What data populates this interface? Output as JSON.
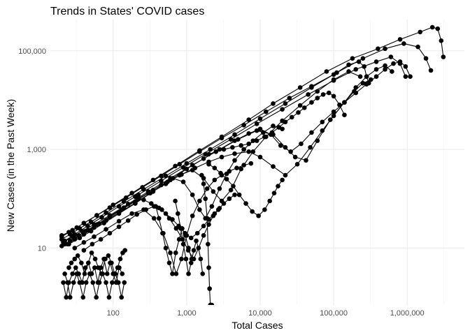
{
  "chart_data": {
    "type": "scatter",
    "title": "Trends in States' COVID cases",
    "xlabel": "Total Cases",
    "ylabel": "New Cases (in the Past Week)",
    "x_scale": "log10",
    "y_scale": "log10",
    "xlim": [
      14,
      6000000
    ],
    "ylim": [
      0.7,
      430000
    ],
    "x_ticks": [
      {
        "value": 100,
        "label": "100"
      },
      {
        "value": 1000,
        "label": "1,000"
      },
      {
        "value": 10000,
        "label": "10,000"
      },
      {
        "value": 100000,
        "label": "100,000"
      },
      {
        "value": 1000000,
        "label": "1,000,000"
      }
    ],
    "y_ticks": [
      {
        "value": 10,
        "label": "10"
      },
      {
        "value": 1000,
        "label": "1,000"
      },
      {
        "value": 100000,
        "label": "100,000"
      }
    ],
    "grid": true,
    "legend": "none",
    "marker_color": "#000000",
    "series": [
      {
        "x": [
          20,
          25,
          32,
          40,
          60,
          90,
          150,
          250,
          450,
          800,
          1500,
          3000,
          6000,
          12000,
          25000,
          50000,
          100000,
          160000,
          220000,
          260000,
          280000,
          300000
        ],
        "y": [
          18,
          21,
          26,
          32,
          46,
          66,
          105,
          170,
          290,
          500,
          900,
          1700,
          3100,
          5800,
          11000,
          19000,
          33000,
          52000,
          60000,
          48000,
          30000,
          22000
        ]
      },
      {
        "x": [
          20,
          28,
          40,
          60,
          100,
          180,
          350,
          700,
          1500,
          3000,
          7000,
          15000,
          35000,
          80000,
          180000,
          400000,
          800000,
          1500000,
          2200000,
          2600000,
          2900000,
          3100000
        ],
        "y": [
          17,
          23,
          32,
          46,
          75,
          130,
          240,
          460,
          950,
          1800,
          4000,
          8500,
          18000,
          38000,
          70000,
          110000,
          170000,
          240000,
          300000,
          280000,
          160000,
          75000
        ]
      },
      {
        "x": [
          22,
          30,
          45,
          70,
          120,
          220,
          450,
          900,
          1800,
          4000,
          9000,
          20000,
          45000,
          100000,
          200000,
          380000,
          600000,
          800000,
          950000
        ],
        "y": [
          14,
          19,
          28,
          42,
          70,
          120,
          230,
          430,
          800,
          1600,
          3300,
          6500,
          13000,
          25000,
          42000,
          60000,
          75000,
          55000,
          30000
        ]
      },
      {
        "x": [
          20,
          26,
          35,
          50,
          80,
          140,
          260,
          520,
          1000,
          2100,
          4500,
          10000,
          22000,
          50000,
          110000,
          250000,
          500000,
          900000,
          1400000,
          1800000,
          2100000
        ],
        "y": [
          15,
          19,
          25,
          34,
          52,
          88,
          155,
          290,
          520,
          1000,
          2000,
          4200,
          8500,
          18000,
          36000,
          70000,
          110000,
          140000,
          120000,
          70000,
          40000
        ]
      },
      {
        "x": [
          21,
          28,
          38,
          55,
          90,
          160,
          300,
          600,
          1200,
          2500,
          5000,
          9000,
          15000,
          22000,
          30000,
          42000,
          60000,
          90000,
          140000,
          200000,
          280000,
          380000,
          500000,
          620000
        ],
        "y": [
          13,
          17,
          22,
          30,
          46,
          78,
          140,
          260,
          480,
          900,
          1600,
          2400,
          2000,
          1100,
          700,
          600,
          1500,
          4000,
          9000,
          18000,
          30000,
          42000,
          50000,
          38000
        ]
      },
      {
        "x": [
          24,
          30,
          40,
          55,
          80,
          120,
          200,
          320,
          520,
          800,
          1200,
          1700,
          2300,
          3000,
          4000,
          5500,
          8000,
          12000,
          20000,
          35000,
          60000,
          100000,
          160000,
          230000
        ],
        "y": [
          12,
          15,
          19,
          26,
          36,
          52,
          82,
          130,
          200,
          300,
          380,
          260,
          140,
          90,
          150,
          400,
          900,
          1800,
          3800,
          7800,
          15000,
          26000,
          38000,
          30000
        ]
      },
      {
        "x": [
          20,
          26,
          34,
          46,
          64,
          90,
          130,
          200,
          300,
          450,
          650,
          900,
          1200,
          1500,
          1800,
          2200,
          2800,
          3500,
          4500,
          6000,
          8000,
          11000,
          15000,
          20000
        ],
        "y": [
          11,
          14,
          18,
          23,
          31,
          42,
          60,
          88,
          130,
          190,
          260,
          220,
          120,
          60,
          40,
          70,
          160,
          320,
          600,
          1000,
          1500,
          2200,
          3000,
          2600
        ]
      },
      {
        "x": [
          22,
          30,
          42,
          60,
          90,
          140,
          220,
          350,
          550,
          850,
          1300,
          2000,
          3000,
          4500,
          7000,
          10000,
          15000,
          22000,
          32000,
          48000,
          70000,
          100000,
          140000,
          190000,
          250000,
          320000
        ],
        "y": [
          12,
          16,
          22,
          30,
          44,
          66,
          100,
          150,
          220,
          310,
          420,
          560,
          700,
          820,
          900,
          700,
          450,
          300,
          500,
          1100,
          2400,
          4800,
          9000,
          15000,
          22000,
          26000
        ]
      },
      {
        "x": [
          25,
          35,
          50,
          75,
          120,
          200,
          350,
          600,
          1000,
          1700,
          2800,
          4500,
          7000,
          10000,
          14000,
          19000,
          26000,
          36000,
          50000,
          70000,
          100000,
          140000,
          200000,
          280000,
          380000,
          500000,
          650000,
          800000,
          950000,
          1100000
        ],
        "y": [
          12,
          16,
          22,
          32,
          50,
          80,
          140,
          240,
          400,
          650,
          1000,
          1500,
          2100,
          2600,
          2000,
          1200,
          900,
          1300,
          2200,
          3600,
          5800,
          9000,
          14000,
          21000,
          30000,
          42000,
          55000,
          60000,
          48000,
          30000
        ]
      },
      {
        "x": [
          30,
          40,
          55,
          80,
          120,
          180,
          260,
          360,
          480,
          600,
          720,
          850,
          1000,
          1200,
          1500,
          1900,
          2400,
          3000,
          3800,
          4800,
          6000,
          7500
        ],
        "y": [
          10,
          13,
          17,
          24,
          35,
          50,
          60,
          40,
          20,
          8,
          3,
          6,
          18,
          45,
          90,
          160,
          240,
          300,
          360,
          420,
          480,
          520
        ]
      },
      {
        "x": [
          40,
          52,
          68,
          90,
          120,
          160,
          210,
          280,
          360,
          460,
          580,
          720,
          880,
          1050,
          1250,
          1450,
          1700,
          2000,
          2300,
          2700,
          3200,
          3800,
          4500
        ],
        "y": [
          9,
          12,
          15,
          20,
          27,
          36,
          48,
          60,
          70,
          60,
          40,
          25,
          15,
          9,
          6,
          10,
          18,
          30,
          45,
          60,
          80,
          100,
          120
        ]
      },
      {
        "x": [
          2000,
          2400,
          2900,
          3500,
          4300,
          5200,
          6400,
          7800,
          9500,
          11500,
          13500,
          15500,
          17500,
          20000
        ],
        "y": [
          500,
          420,
          330,
          250,
          180,
          120,
          80,
          55,
          45,
          60,
          90,
          130,
          180,
          240
        ]
      },
      {
        "x": [
          200,
          260,
          330,
          420,
          520,
          640,
          780,
          950,
          1150,
          1400,
          1700,
          2000,
          2400,
          2800
        ],
        "y": [
          110,
          95,
          80,
          65,
          50,
          38,
          28,
          20,
          16,
          20,
          28,
          38,
          50,
          64
        ]
      },
      {
        "x": [
          1600,
          1700,
          1800,
          1900,
          1950,
          2000,
          2050,
          2100,
          2150,
          2200
        ],
        "y": [
          300,
          200,
          100,
          40,
          12,
          4,
          1.5,
          0.7,
          0.7,
          0.7
        ]
      },
      {
        "x": [
          2000,
          2500,
          3200,
          4200,
          5500,
          7000,
          9000,
          11500,
          14500,
          18000,
          22000,
          27000,
          33000,
          40000,
          50000,
          60000,
          72000,
          86000,
          100000,
          120000,
          140000
        ],
        "y": [
          800,
          900,
          1000,
          1100,
          1200,
          1300,
          1500,
          1800,
          2200,
          2800,
          3600,
          4500,
          5600,
          7000,
          9000,
          11000,
          13000,
          14000,
          12000,
          8000,
          5000
        ]
      },
      {
        "x": [
          25,
          27,
          30,
          33,
          37,
          41,
          46,
          51,
          57,
          63,
          70,
          78,
          86,
          95,
          105,
          115,
          125,
          135,
          145
        ],
        "y": [
          4,
          5,
          6,
          7,
          5,
          3,
          5,
          8,
          6,
          4,
          3,
          6,
          7,
          5,
          3,
          4,
          6,
          8,
          9
        ]
      },
      {
        "x": [
          22,
          24,
          26,
          29,
          32,
          35,
          39,
          43,
          48,
          53,
          59,
          65,
          72,
          80,
          88,
          97,
          107,
          118,
          130,
          142
        ],
        "y": [
          3,
          2,
          1,
          2,
          3,
          2,
          1,
          2,
          3,
          2,
          1,
          2,
          3,
          2,
          1,
          2,
          3,
          2,
          1,
          2
        ]
      },
      {
        "x": [
          21,
          23,
          25,
          28,
          31,
          34,
          38,
          42,
          46,
          51,
          56,
          62,
          68,
          75,
          83,
          91,
          100,
          110,
          121,
          133
        ],
        "y": [
          2,
          1,
          2,
          3,
          4,
          3,
          2,
          4,
          5,
          3,
          4,
          2,
          4,
          6,
          3,
          5,
          3,
          2,
          4,
          3
        ]
      },
      {
        "x": [
          380,
          420,
          470,
          520,
          580,
          640,
          710,
          790,
          870,
          960,
          1060,
          1170
        ],
        "y": [
          70,
          40,
          20,
          10,
          5,
          3,
          8,
          15,
          25,
          18,
          10,
          6
        ]
      },
      {
        "x": [
          700,
          760,
          830,
          900,
          980,
          1060,
          1150,
          1250,
          1350,
          1450,
          1550,
          1650
        ],
        "y": [
          90,
          50,
          25,
          12,
          6,
          3,
          5,
          9,
          14,
          10,
          6,
          3
        ]
      }
    ]
  }
}
